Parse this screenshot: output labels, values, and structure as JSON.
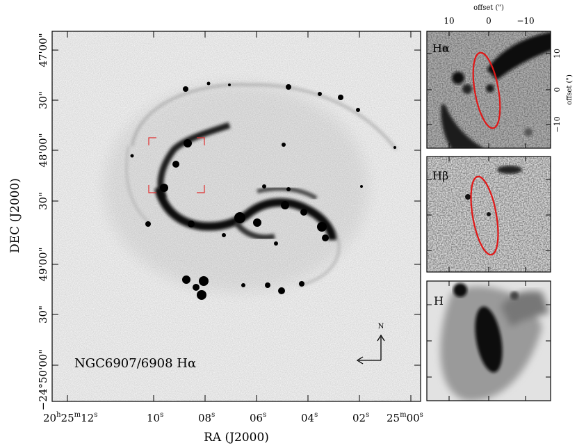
{
  "main_panel": {
    "label": "NGC6907/6908 Hα",
    "x_axis": {
      "title": "RA (J2000)",
      "ticks": [
        {
          "h": "20",
          "m": "25",
          "s": "12",
          "text": "20h25m12s"
        },
        {
          "s": "10",
          "text": "10s"
        },
        {
          "s": "08",
          "text": "08s"
        },
        {
          "s": "06",
          "text": "06s"
        },
        {
          "s": "04",
          "text": "04s"
        },
        {
          "s": "02",
          "text": "02s"
        },
        {
          "m": "25",
          "s": "00",
          "text": "25m00s"
        }
      ]
    },
    "y_axis": {
      "title": "DEC (J2000)",
      "ticks": [
        {
          "text": "47'00\""
        },
        {
          "text": "30\""
        },
        {
          "text": "48'00\""
        },
        {
          "text": "30\""
        },
        {
          "text": "49'00\""
        },
        {
          "text": "30\""
        },
        {
          "text": "−24°50'00\""
        }
      ]
    },
    "compass": {
      "north": "N"
    }
  },
  "insets": {
    "top_axis": {
      "title": "offset (\")",
      "ticks": [
        "10",
        "0",
        "−10"
      ]
    },
    "right_axis": {
      "title": "offset (\")",
      "ticks": [
        "10",
        "0",
        "−10"
      ]
    },
    "panels": [
      {
        "label": "Hα"
      },
      {
        "label": "Hβ"
      },
      {
        "label": "H"
      }
    ]
  },
  "colors": {
    "ellipse": "#e01818",
    "box": "#e03030"
  }
}
